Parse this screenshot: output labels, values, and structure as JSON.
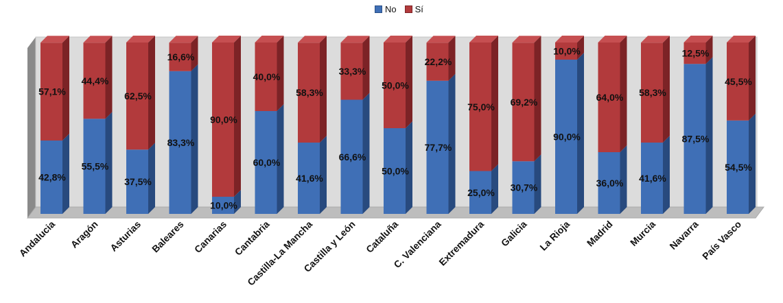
{
  "colors": {
    "no_front": "#3f6fb6",
    "no_side": "#284a7e",
    "si_front": "#b23a3c",
    "si_side": "#7c2326",
    "si_top": "#c64f51",
    "back_wall": "#dcdcdc",
    "side_wall": "#8a8a8a",
    "floor": "#bdbdbd"
  },
  "chart_data": {
    "type": "bar",
    "stacked": true,
    "percent": true,
    "three_d": true,
    "legend_position": "top",
    "categories": [
      "Andalucia",
      "Aragón",
      "Asturias",
      "Baleares",
      "Canarias",
      "Cantabria",
      "Castilla-La Mancha",
      "Castilla y León",
      "Cataluña",
      "C. Valenciana",
      "Extremadura",
      "Galicia",
      "La Rioja",
      "Madrid",
      "Murcia",
      "Navarra",
      "País Vasco"
    ],
    "series": [
      {
        "name": "No",
        "values": [
          42.8,
          55.5,
          37.5,
          83.3,
          10.0,
          60.0,
          41.6,
          66.6,
          50.0,
          77.7,
          25.0,
          30.7,
          90.0,
          36.0,
          41.6,
          87.5,
          54.5
        ],
        "labels": [
          "42,8%",
          "55,5%",
          "37,5%",
          "83,3%",
          "10,0%",
          "60,0%",
          "41,6%",
          "66,6%",
          "50,0%",
          "77,7%",
          "25,0%",
          "30,7%",
          "90,0%",
          "36,0%",
          "41,6%",
          "87,5%",
          "54,5%"
        ]
      },
      {
        "name": "Sí",
        "values": [
          57.1,
          44.4,
          62.5,
          16.6,
          90.0,
          40.0,
          58.3,
          33.3,
          50.0,
          22.2,
          75.0,
          69.2,
          10.0,
          64.0,
          58.3,
          12.5,
          45.5
        ],
        "labels": [
          "57,1%",
          "44,4%",
          "62,5%",
          "16,6%",
          "90,0%",
          "40,0%",
          "58,3%",
          "33,3%",
          "50,0%",
          "22,2%",
          "75,0%",
          "69,2%",
          "10,0%",
          "64,0%",
          "58,3%",
          "12,5%",
          "45,5%"
        ]
      }
    ]
  }
}
